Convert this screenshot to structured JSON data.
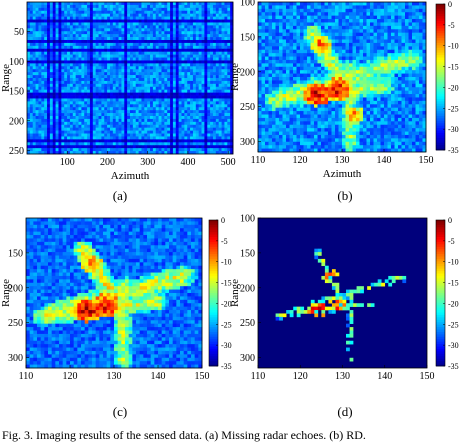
{
  "caption": "Fig. 3. Imaging results of the sensed data. (a) Missing radar echoes. (b) RD.",
  "colors": {
    "colormap": [
      "#000080",
      "#0000ff",
      "#0080ff",
      "#00ffff",
      "#80ff80",
      "#ffff00",
      "#ff8000",
      "#ff0000",
      "#800000"
    ],
    "background_dark": "#00007c"
  },
  "chart_data": [
    {
      "type": "heatmap",
      "panel_label": "(a)",
      "xlabel": "Azimuth",
      "ylabel": "Range",
      "xlim": [
        0,
        512
      ],
      "ylim": [
        0,
        256
      ],
      "y_inverted": true,
      "x_ticks": [
        100,
        200,
        300,
        400,
        500
      ],
      "y_ticks": [
        50,
        100,
        150,
        200,
        250
      ],
      "colorbar": false,
      "pattern": "full-frame noise with striped missing echoes",
      "features": []
    },
    {
      "type": "heatmap",
      "panel_label": "(b)",
      "xlabel": "Azimuth",
      "ylabel": "Range",
      "xlim": [
        110,
        150
      ],
      "ylim": [
        100,
        315
      ],
      "y_inverted": true,
      "x_ticks": [
        110,
        120,
        130,
        140,
        150
      ],
      "y_ticks": [
        100,
        150,
        200,
        250,
        300
      ],
      "colorbar": true,
      "colorbar_range": [
        -35,
        0
      ],
      "colorbar_ticks": [
        0,
        -5,
        -10,
        -15,
        -20,
        -25,
        -30,
        -35
      ],
      "background_db": -26,
      "noise_db": 6,
      "features": [
        {
          "kind": "line",
          "x1": 116,
          "y1": 236,
          "x2": 146,
          "y2": 183,
          "db": -16,
          "w": 3.5
        },
        {
          "kind": "line",
          "x1": 123,
          "y1": 145,
          "x2": 132,
          "y2": 230,
          "db": -15,
          "w": 3
        },
        {
          "kind": "line",
          "x1": 132,
          "y1": 195,
          "x2": 132,
          "y2": 305,
          "db": -17,
          "w": 2.5
        },
        {
          "kind": "line",
          "x1": 114,
          "y1": 242,
          "x2": 140,
          "y2": 220,
          "db": -16,
          "w": 3
        },
        {
          "kind": "blob",
          "x": 124,
          "y": 232,
          "db": -3,
          "r": 2
        },
        {
          "kind": "blob",
          "x": 129,
          "y": 226,
          "db": -4,
          "r": 2
        },
        {
          "kind": "blob",
          "x": 125,
          "y": 160,
          "db": -8,
          "r": 1.5
        },
        {
          "kind": "blob",
          "x": 133,
          "y": 262,
          "db": -9,
          "r": 1.5
        }
      ]
    },
    {
      "type": "heatmap",
      "panel_label": "(c)",
      "xlabel": "Azimuth",
      "ylabel": "Range",
      "xlim": [
        110,
        150
      ],
      "ylim": [
        100,
        315
      ],
      "y_inverted": true,
      "x_ticks": [
        110,
        120,
        130,
        140,
        150
      ],
      "y_ticks": [
        150,
        200,
        250,
        300
      ],
      "colorbar": true,
      "colorbar_range": [
        -35,
        0
      ],
      "colorbar_ticks": [
        0,
        -5,
        -10,
        -15,
        -20,
        -25,
        -30,
        -35
      ],
      "background_db": -27,
      "noise_db": 5,
      "features": [
        {
          "kind": "line",
          "x1": 116,
          "y1": 236,
          "x2": 146,
          "y2": 183,
          "db": -15,
          "w": 3.5
        },
        {
          "kind": "line",
          "x1": 123,
          "y1": 145,
          "x2": 132,
          "y2": 230,
          "db": -14,
          "w": 3
        },
        {
          "kind": "line",
          "x1": 132,
          "y1": 195,
          "x2": 132,
          "y2": 305,
          "db": -16,
          "w": 2.5
        },
        {
          "kind": "line",
          "x1": 114,
          "y1": 242,
          "x2": 140,
          "y2": 220,
          "db": -15,
          "w": 3
        },
        {
          "kind": "blob",
          "x": 124,
          "y": 232,
          "db": -3,
          "r": 2
        },
        {
          "kind": "blob",
          "x": 128,
          "y": 226,
          "db": -4,
          "r": 2
        },
        {
          "kind": "blob",
          "x": 125,
          "y": 165,
          "db": -8,
          "r": 1.5
        }
      ]
    },
    {
      "type": "heatmap",
      "panel_label": "(d)",
      "xlabel": "Azimuth",
      "ylabel": "Range",
      "xlim": [
        110,
        150
      ],
      "ylim": [
        100,
        315
      ],
      "y_inverted": true,
      "x_ticks": [
        110,
        120,
        130,
        140,
        150
      ],
      "y_ticks": [
        100,
        150,
        200,
        250,
        300
      ],
      "colorbar": true,
      "colorbar_range": [
        -35,
        0
      ],
      "colorbar_ticks": [
        0,
        -5,
        -10,
        -15,
        -20,
        -25,
        -30,
        -35
      ],
      "background_db": -34,
      "noise_db": 0,
      "sparse": true,
      "features": [
        {
          "kind": "line",
          "x1": 118,
          "y1": 234,
          "x2": 144,
          "y2": 186,
          "db": -17,
          "w": 1.3
        },
        {
          "kind": "line",
          "x1": 124,
          "y1": 150,
          "x2": 131,
          "y2": 225,
          "db": -17,
          "w": 1.2
        },
        {
          "kind": "line",
          "x1": 132,
          "y1": 205,
          "x2": 132,
          "y2": 300,
          "db": -18,
          "w": 1.1
        },
        {
          "kind": "line",
          "x1": 115,
          "y1": 240,
          "x2": 138,
          "y2": 222,
          "db": -17,
          "w": 1.1
        },
        {
          "kind": "blob",
          "x": 124,
          "y": 232,
          "db": -4,
          "r": 1.5
        },
        {
          "kind": "blob",
          "x": 129,
          "y": 225,
          "db": -6,
          "r": 1.4
        },
        {
          "kind": "blob",
          "x": 127,
          "y": 182,
          "db": -8,
          "r": 1.2
        }
      ]
    }
  ]
}
